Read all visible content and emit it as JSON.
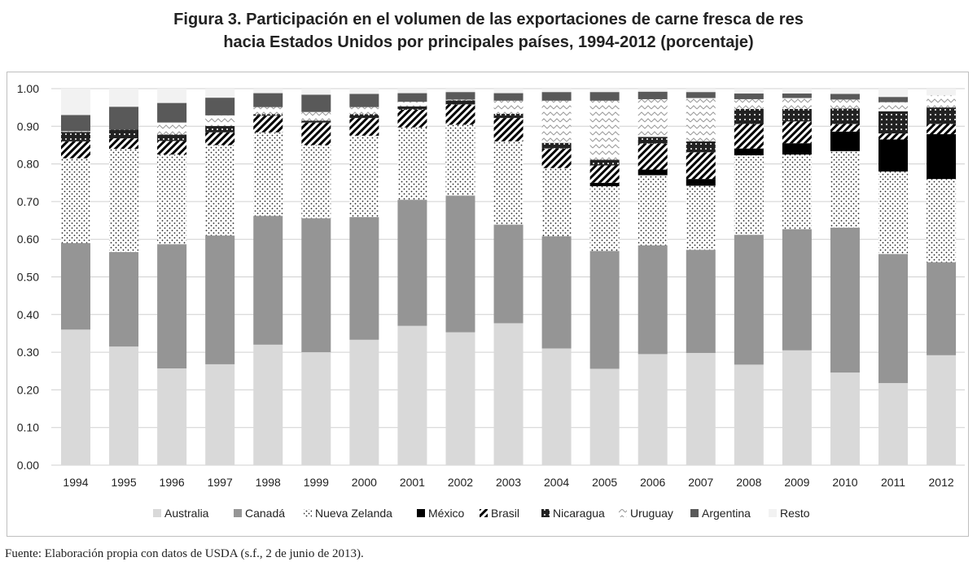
{
  "title_line1": "Figura 3. Participación en el volumen de las exportaciones de carne fresca de res",
  "title_line2": "hacia Estados Unidos por principales países, 1994-2012 (porcentaje)",
  "footer": "Fuente: Elaboración propia con datos de USDA (s.f., 2 de junio de 2013).",
  "chart_data": {
    "type": "bar",
    "stacked": true,
    "title": "Figura 3. Participación en el volumen de las exportaciones de carne fresca de res hacia Estados Unidos por principales países, 1994-2012 (porcentaje)",
    "xlabel": "",
    "ylabel": "",
    "ylim": [
      0,
      1
    ],
    "yticks": [
      "0.00",
      "0.10",
      "0.20",
      "0.30",
      "0.40",
      "0.50",
      "0.60",
      "0.70",
      "0.80",
      "0.90",
      "1.00"
    ],
    "grid": true,
    "legend": "bottom",
    "categories": [
      "1994",
      "1995",
      "1996",
      "1997",
      "1998",
      "1999",
      "2000",
      "2001",
      "2002",
      "2003",
      "2004",
      "2005",
      "2006",
      "2007",
      "2008",
      "2009",
      "2010",
      "2011",
      "2012"
    ],
    "series": [
      {
        "name": "Australia",
        "fill": "#d9d9d9",
        "values": [
          0.36,
          0.315,
          0.257,
          0.268,
          0.32,
          0.3,
          0.333,
          0.37,
          0.353,
          0.377,
          0.31,
          0.256,
          0.295,
          0.298,
          0.267,
          0.305,
          0.246,
          0.218,
          0.292
        ]
      },
      {
        "name": "Canadá",
        "fill": "#959595",
        "values": [
          0.23,
          0.251,
          0.33,
          0.342,
          0.342,
          0.356,
          0.326,
          0.335,
          0.363,
          0.262,
          0.298,
          0.313,
          0.289,
          0.274,
          0.345,
          0.322,
          0.385,
          0.343,
          0.247
        ]
      },
      {
        "name": "Nueva Zelanda",
        "fill": "dots",
        "values": [
          0.225,
          0.274,
          0.238,
          0.24,
          0.222,
          0.194,
          0.216,
          0.192,
          0.188,
          0.221,
          0.181,
          0.172,
          0.186,
          0.17,
          0.211,
          0.198,
          0.203,
          0.219,
          0.221
        ]
      },
      {
        "name": "México",
        "fill": "#000000",
        "values": [
          0,
          0,
          0,
          0,
          0,
          0,
          0,
          0,
          0,
          0,
          0,
          0.009,
          0.015,
          0.018,
          0.018,
          0.03,
          0.052,
          0.085,
          0.119
        ]
      },
      {
        "name": "Brasil",
        "fill": "stripes",
        "values": [
          0.045,
          0.028,
          0.036,
          0.034,
          0.044,
          0.06,
          0.047,
          0.047,
          0.054,
          0.062,
          0.052,
          0.046,
          0.069,
          0.071,
          0.065,
          0.058,
          0.02,
          0.016,
          0.027
        ]
      },
      {
        "name": "Nicaragua",
        "fill": "darkdots",
        "values": [
          0.025,
          0.023,
          0.017,
          0.017,
          0.004,
          0.005,
          0.01,
          0.009,
          0.011,
          0.011,
          0.015,
          0.015,
          0.018,
          0.029,
          0.04,
          0.033,
          0.041,
          0.059,
          0.044
        ]
      },
      {
        "name": "Uruguay",
        "fill": "zigzag",
        "values": [
          0.002,
          0,
          0.032,
          0.028,
          0.019,
          0.023,
          0.019,
          0.012,
          0.002,
          0.035,
          0.112,
          0.157,
          0.1,
          0.115,
          0.026,
          0.029,
          0.024,
          0.024,
          0.032
        ]
      },
      {
        "name": "Argentina",
        "fill": "#595959",
        "values": [
          0.043,
          0.061,
          0.052,
          0.047,
          0.037,
          0.046,
          0.035,
          0.023,
          0.02,
          0.02,
          0.023,
          0.023,
          0.02,
          0.016,
          0.015,
          0.012,
          0.015,
          0.014,
          0.0
        ]
      },
      {
        "name": "Resto",
        "fill": "#f2f2f2",
        "values": [
          0.07,
          0.048,
          0.038,
          0.024,
          0.012,
          0.016,
          0.014,
          0.012,
          0.009,
          0.012,
          0.009,
          0.009,
          0.008,
          0.009,
          0.013,
          0.013,
          0.014,
          0.022,
          0.018
        ]
      }
    ]
  }
}
